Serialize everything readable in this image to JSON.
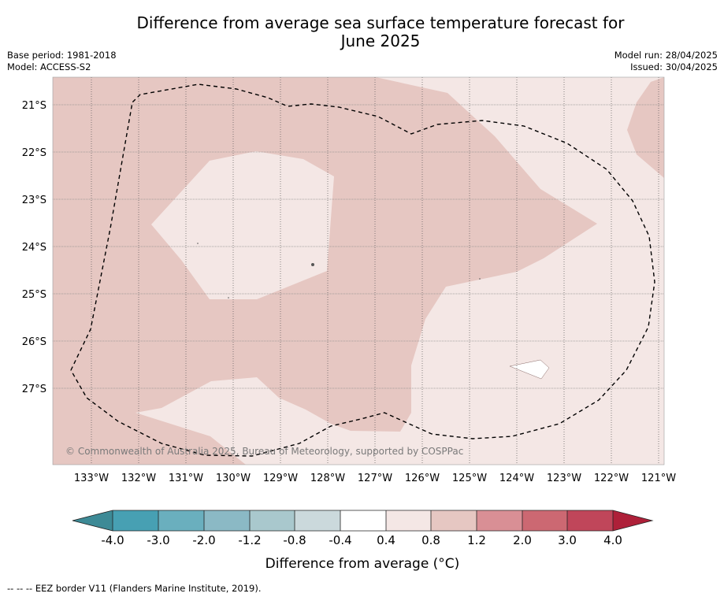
{
  "title": {
    "line1": "Difference from average sea surface temperature forecast for",
    "line2": "June 2025"
  },
  "meta": {
    "base_period": "Base period: 1981-2018",
    "model": "Model: ACCESS-S2",
    "model_run": "Model run: 28/04/2025",
    "issued": "Issued: 30/04/2025"
  },
  "map": {
    "lon_labels": [
      "133°W",
      "132°W",
      "131°W",
      "130°W",
      "129°W",
      "128°W",
      "127°W",
      "126°W",
      "125°W",
      "124°W",
      "123°W",
      "122°W",
      "121°W"
    ],
    "lat_labels": [
      "21°S",
      "22°S",
      "23°S",
      "24°S",
      "25°S",
      "26°S",
      "27°S"
    ],
    "copyright": "© Commonwealth of Australia 2025, Bureau of Meteorology, supported by COSPPac",
    "colors": {
      "band_0_4_to_0_8": "#f4e7e5",
      "band_0_8_to_1_2": "#e6c7c2",
      "band_neg0_4_to_0_4": "#ffffff"
    }
  },
  "colorbar": {
    "ticks": [
      "-4.0",
      "-3.0",
      "-2.0",
      "-1.2",
      "-0.8",
      "-0.4",
      "0.4",
      "0.8",
      "1.2",
      "2.0",
      "3.0",
      "4.0"
    ],
    "colors": [
      "#3d8a96",
      "#47a0b3",
      "#6aafbe",
      "#8bb9c5",
      "#a9c8cd",
      "#cbd9dc",
      "#ffffff",
      "#f4e7e5",
      "#e6c7c2",
      "#d98f95",
      "#cc6872",
      "#c0465a",
      "#ae2039"
    ],
    "label": "Difference from average (°C)"
  },
  "footnote": "--  --  -- EEZ border V11 (Flanders Marine Institute, 2019)."
}
